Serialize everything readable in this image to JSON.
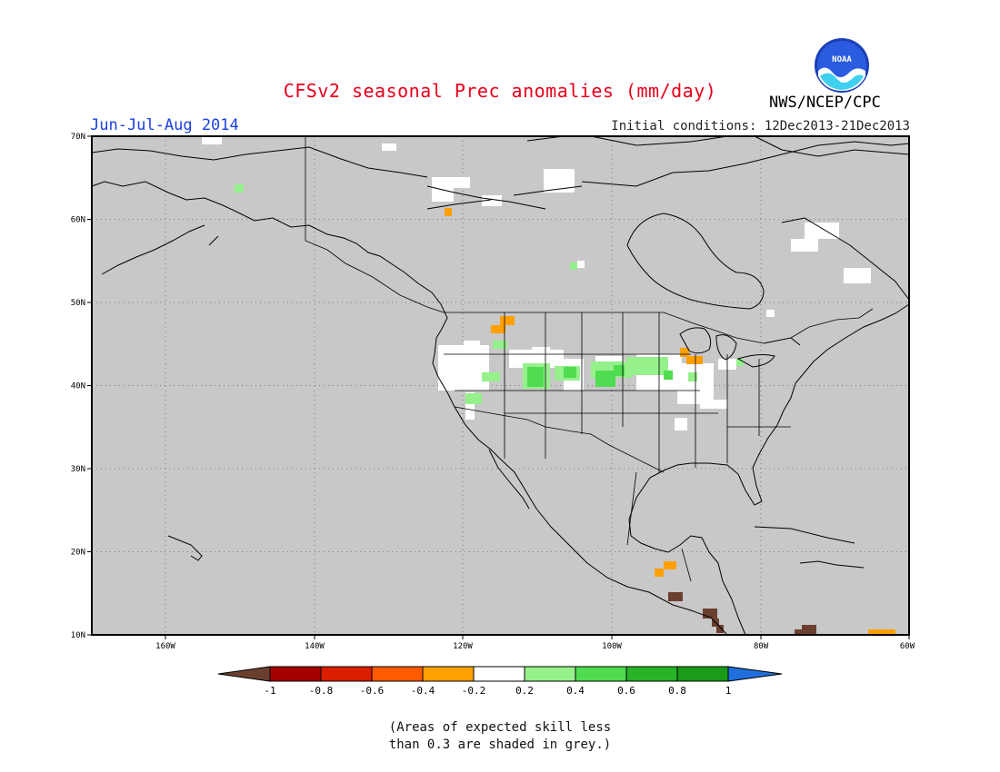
{
  "header": {
    "title": "CFSv2 seasonal Prec anomalies (mm/day)",
    "season": "Jun-Jul-Aug 2014",
    "initial_conditions": "Initial conditions: 12Dec2013-21Dec2013",
    "agency": "NWS/NCEP/CPC",
    "logo_text": "NOAA"
  },
  "map": {
    "lat_labels": [
      "70N",
      "60N",
      "50N",
      "40N",
      "30N",
      "20N",
      "10N"
    ],
    "lon_labels": [
      "160W",
      "140W",
      "120W",
      "100W",
      "80W",
      "60W"
    ],
    "background_color": "#c8c8c8"
  },
  "colorbar": {
    "tick_labels": [
      "-1",
      "-0.8",
      "-0.6",
      "-0.4",
      "-0.2",
      "0.2",
      "0.4",
      "0.6",
      "0.8",
      "1"
    ],
    "below_color": "#6b3f2e",
    "above_color": "#1f6fdc",
    "bin_colors": [
      "#a50000",
      "#dc1e00",
      "#ff5a00",
      "#ffa000",
      "#ffffff",
      "#96f08c",
      "#50dc50",
      "#28b428",
      "#199b19"
    ]
  },
  "footnote": {
    "line1": "(Areas of expected skill less",
    "line2": "than 0.3 are shaded in grey.)"
  }
}
